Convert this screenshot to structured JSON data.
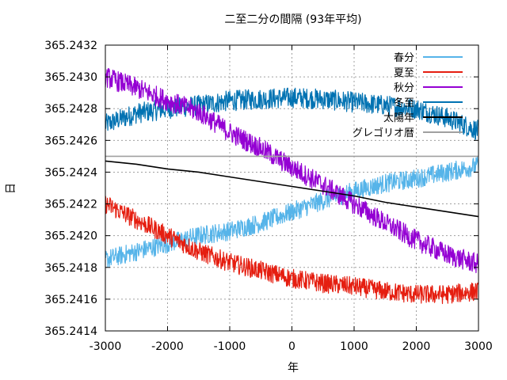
{
  "chart_data": {
    "type": "line",
    "title": "二至二分の間隔 (93年平均)",
    "xlabel": "年",
    "ylabel": "日",
    "xlim": [
      -3000,
      3000
    ],
    "ylim": [
      365.2414,
      365.2432
    ],
    "xticks": [
      "-3000",
      "-2000",
      "-1000",
      "0",
      "1000",
      "2000",
      "3000"
    ],
    "yticks": [
      "365.2414",
      "365.2416",
      "365.2418",
      "365.2420",
      "365.2422",
      "365.2424",
      "365.2426",
      "365.2428",
      "365.2430",
      "365.2432"
    ],
    "grid": true,
    "legend_position": "top-right",
    "x": [
      -3000,
      -2500,
      -2000,
      -1500,
      -1000,
      -500,
      0,
      500,
      1000,
      1500,
      2000,
      2500,
      3000
    ],
    "series": [
      {
        "name": "春分",
        "color": "#56b4e9",
        "noise": 0.00012,
        "values": [
          365.24185,
          365.2419,
          365.24195,
          365.242,
          365.24203,
          365.24208,
          365.24215,
          365.24222,
          365.24228,
          365.24233,
          365.24236,
          365.2424,
          365.24244
        ]
      },
      {
        "name": "夏至",
        "color": "#e51e10",
        "noise": 0.00012,
        "values": [
          365.2422,
          365.2421,
          365.242,
          365.2419,
          365.24183,
          365.24178,
          365.24173,
          365.2417,
          365.24168,
          365.24165,
          365.24163,
          365.24163,
          365.24165
        ]
      },
      {
        "name": "秋分",
        "color": "#9400d3",
        "noise": 0.00013,
        "values": [
          365.243,
          365.24293,
          365.24285,
          365.24278,
          365.24265,
          365.24255,
          365.24243,
          365.24232,
          365.2422,
          365.24208,
          365.24197,
          365.24188,
          365.24182
        ]
      },
      {
        "name": "冬至",
        "color": "#0072b2",
        "noise": 0.00013,
        "values": [
          365.2427,
          365.24277,
          365.2428,
          365.24282,
          365.24285,
          365.24286,
          365.24287,
          365.24286,
          365.24284,
          365.24282,
          365.2428,
          365.24274,
          365.24266
        ]
      },
      {
        "name": "太陽年",
        "color": "#000000",
        "noise": 0,
        "values": [
          365.24247,
          365.24245,
          365.24242,
          365.2424,
          365.24237,
          365.24234,
          365.24231,
          365.24228,
          365.24225,
          365.24221,
          365.24218,
          365.24215,
          365.24212
        ]
      },
      {
        "name": "グレゴリオ暦",
        "color": "#a0a0a0",
        "noise": 0,
        "values": [
          365.2425,
          365.2425,
          365.2425,
          365.2425,
          365.2425,
          365.2425,
          365.2425,
          365.2425,
          365.2425,
          365.2425,
          365.2425,
          365.2425,
          365.2425
        ]
      }
    ]
  }
}
